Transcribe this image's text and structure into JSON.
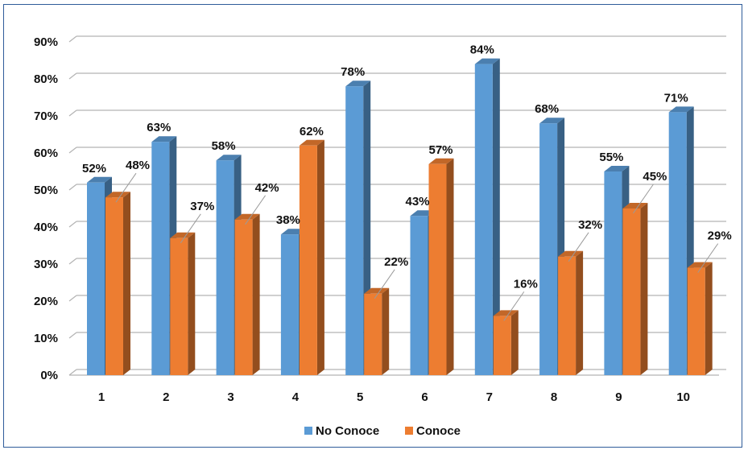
{
  "chart_data": {
    "type": "bar",
    "categories": [
      "1",
      "2",
      "3",
      "4",
      "5",
      "6",
      "7",
      "8",
      "9",
      "10"
    ],
    "series": [
      {
        "name": "No Conoce",
        "values": [
          52,
          63,
          58,
          38,
          78,
          43,
          84,
          68,
          55,
          71
        ],
        "color": "#5b9bd5"
      },
      {
        "name": "Conoce",
        "values": [
          48,
          37,
          42,
          62,
          22,
          57,
          16,
          32,
          45,
          29
        ],
        "color": "#ed7d31"
      }
    ],
    "y_ticks": [
      "0%",
      "10%",
      "20%",
      "30%",
      "40%",
      "50%",
      "60%",
      "70%",
      "80%",
      "90%"
    ],
    "ylim": [
      0,
      90
    ],
    "value_format": "percent",
    "grid": true,
    "style_3d": true,
    "legend_position": "bottom"
  }
}
